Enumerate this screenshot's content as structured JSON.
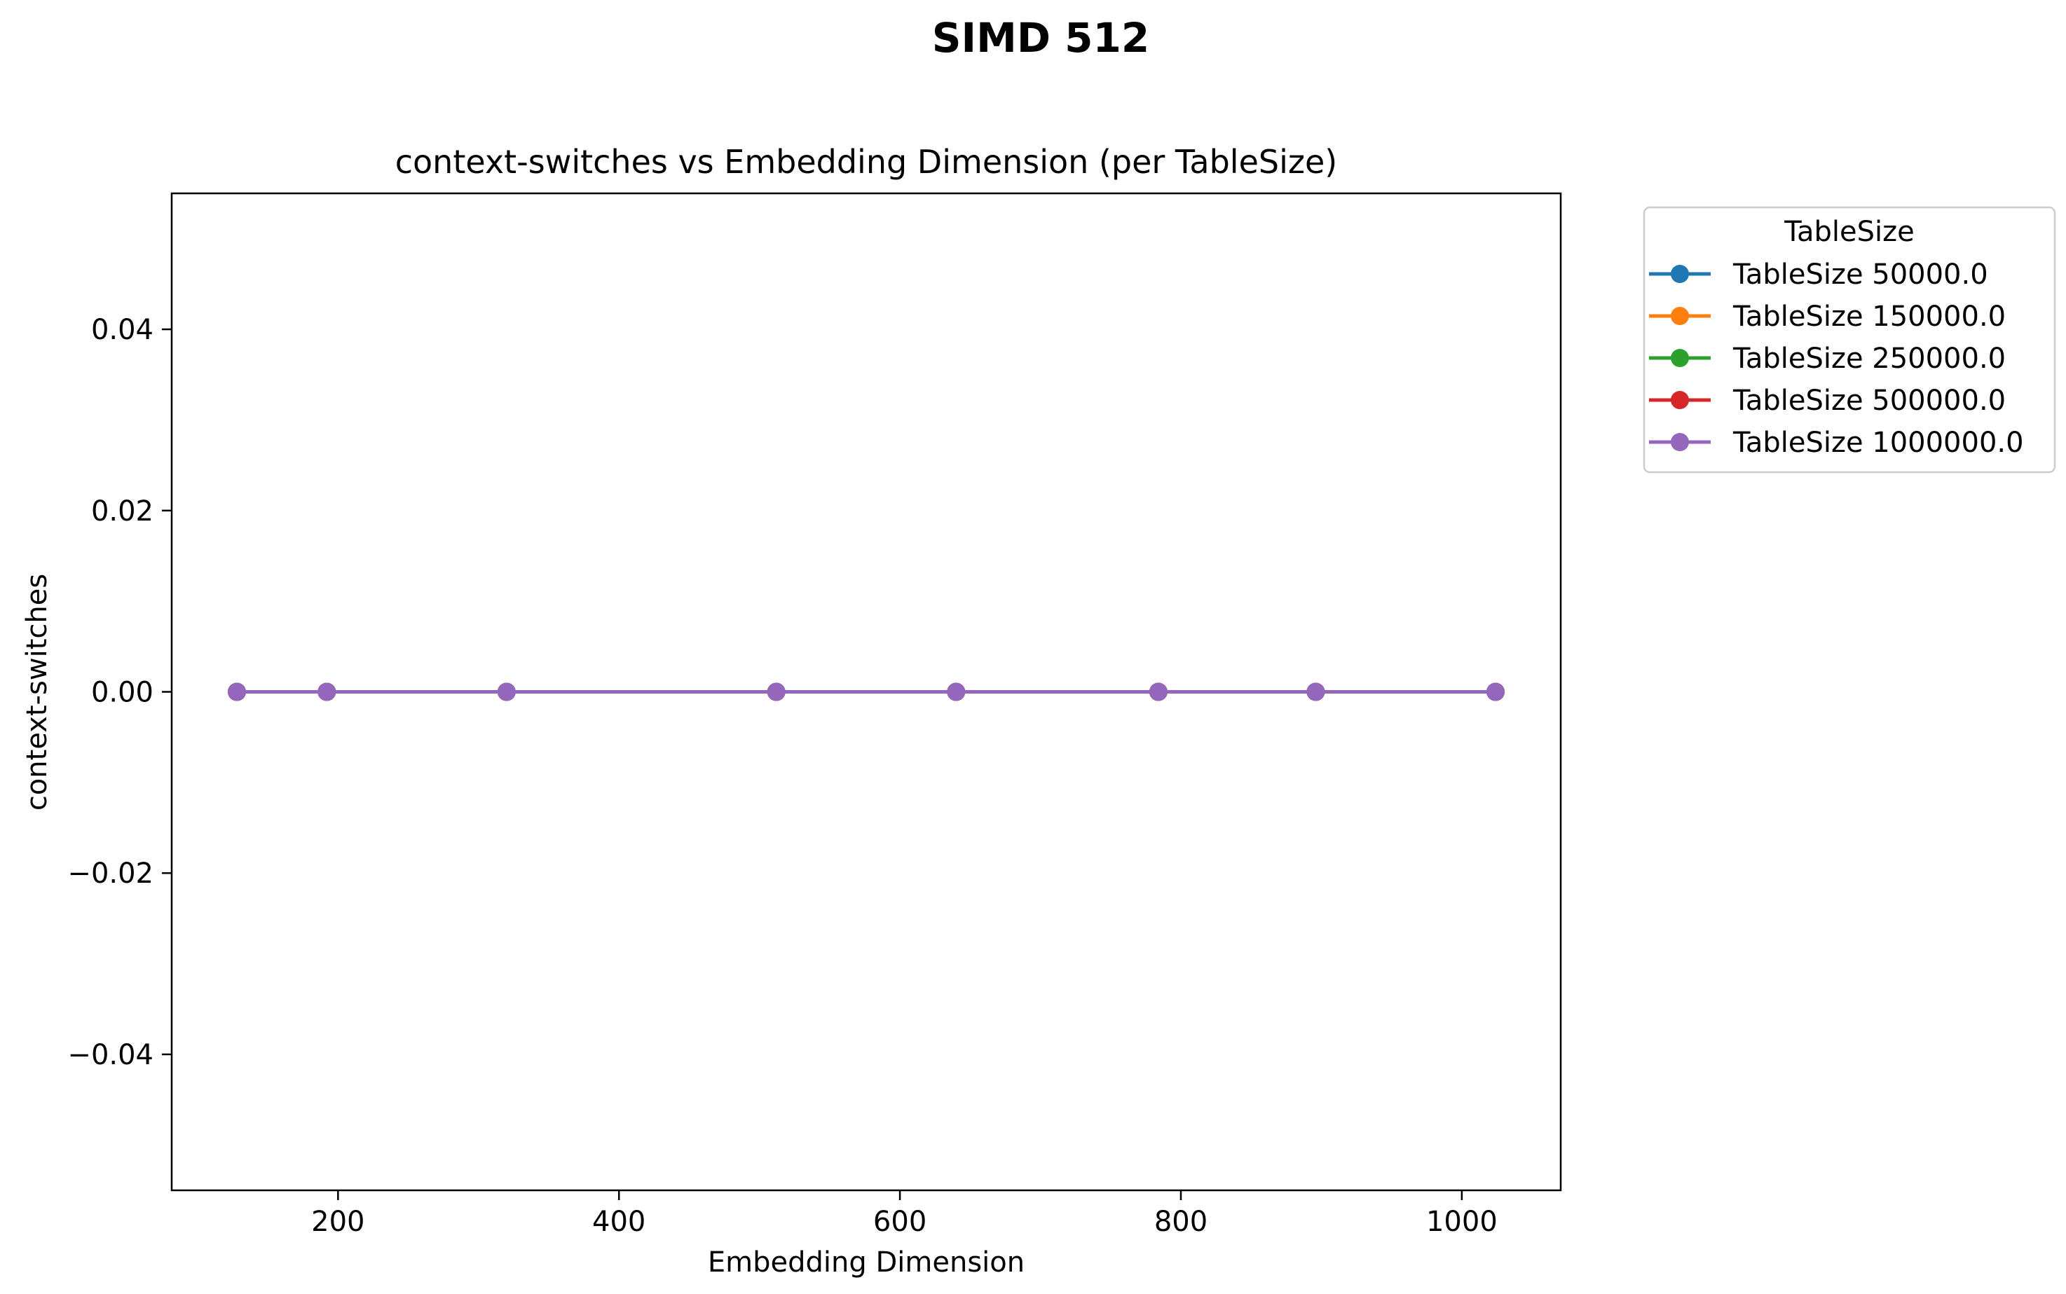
{
  "suptitle": "SIMD 512",
  "chart_data": {
    "type": "line",
    "title": "context-switches vs Embedding Dimension (per TableSize)",
    "xlabel": "Embedding Dimension",
    "ylabel": "context-switches",
    "xlim": [
      81.6,
      1070.4
    ],
    "ylim": [
      -0.055,
      0.055
    ],
    "xticks": [
      200,
      400,
      600,
      800,
      1000
    ],
    "xtick_labels": [
      "200",
      "400",
      "600",
      "800",
      "1000"
    ],
    "yticks": [
      -0.04,
      -0.02,
      0.0,
      0.02,
      0.04
    ],
    "ytick_labels": [
      "−0.04",
      "−0.02",
      "0.00",
      "0.02",
      "0.04"
    ],
    "grid": false,
    "legend_title": "TableSize",
    "legend_placement": "outside upper right",
    "x": [
      128,
      192,
      320,
      512,
      640,
      784,
      896,
      1024
    ],
    "series": [
      {
        "name": "TableSize 50000.0",
        "color": "#1f77b4",
        "values": [
          0,
          0,
          0,
          0,
          0,
          0,
          0,
          0
        ]
      },
      {
        "name": "TableSize 150000.0",
        "color": "#ff7f0e",
        "values": [
          0,
          0,
          0,
          0,
          0,
          0,
          0,
          0
        ]
      },
      {
        "name": "TableSize 250000.0",
        "color": "#2ca02c",
        "values": [
          0,
          0,
          0,
          0,
          0,
          0,
          0,
          0
        ]
      },
      {
        "name": "TableSize 500000.0",
        "color": "#d62728",
        "values": [
          0,
          0,
          0,
          0,
          0,
          0,
          0,
          0
        ]
      },
      {
        "name": "TableSize 1000000.0",
        "color": "#9467bd",
        "values": [
          0,
          0,
          0,
          0,
          0,
          0,
          0,
          0
        ]
      }
    ]
  }
}
